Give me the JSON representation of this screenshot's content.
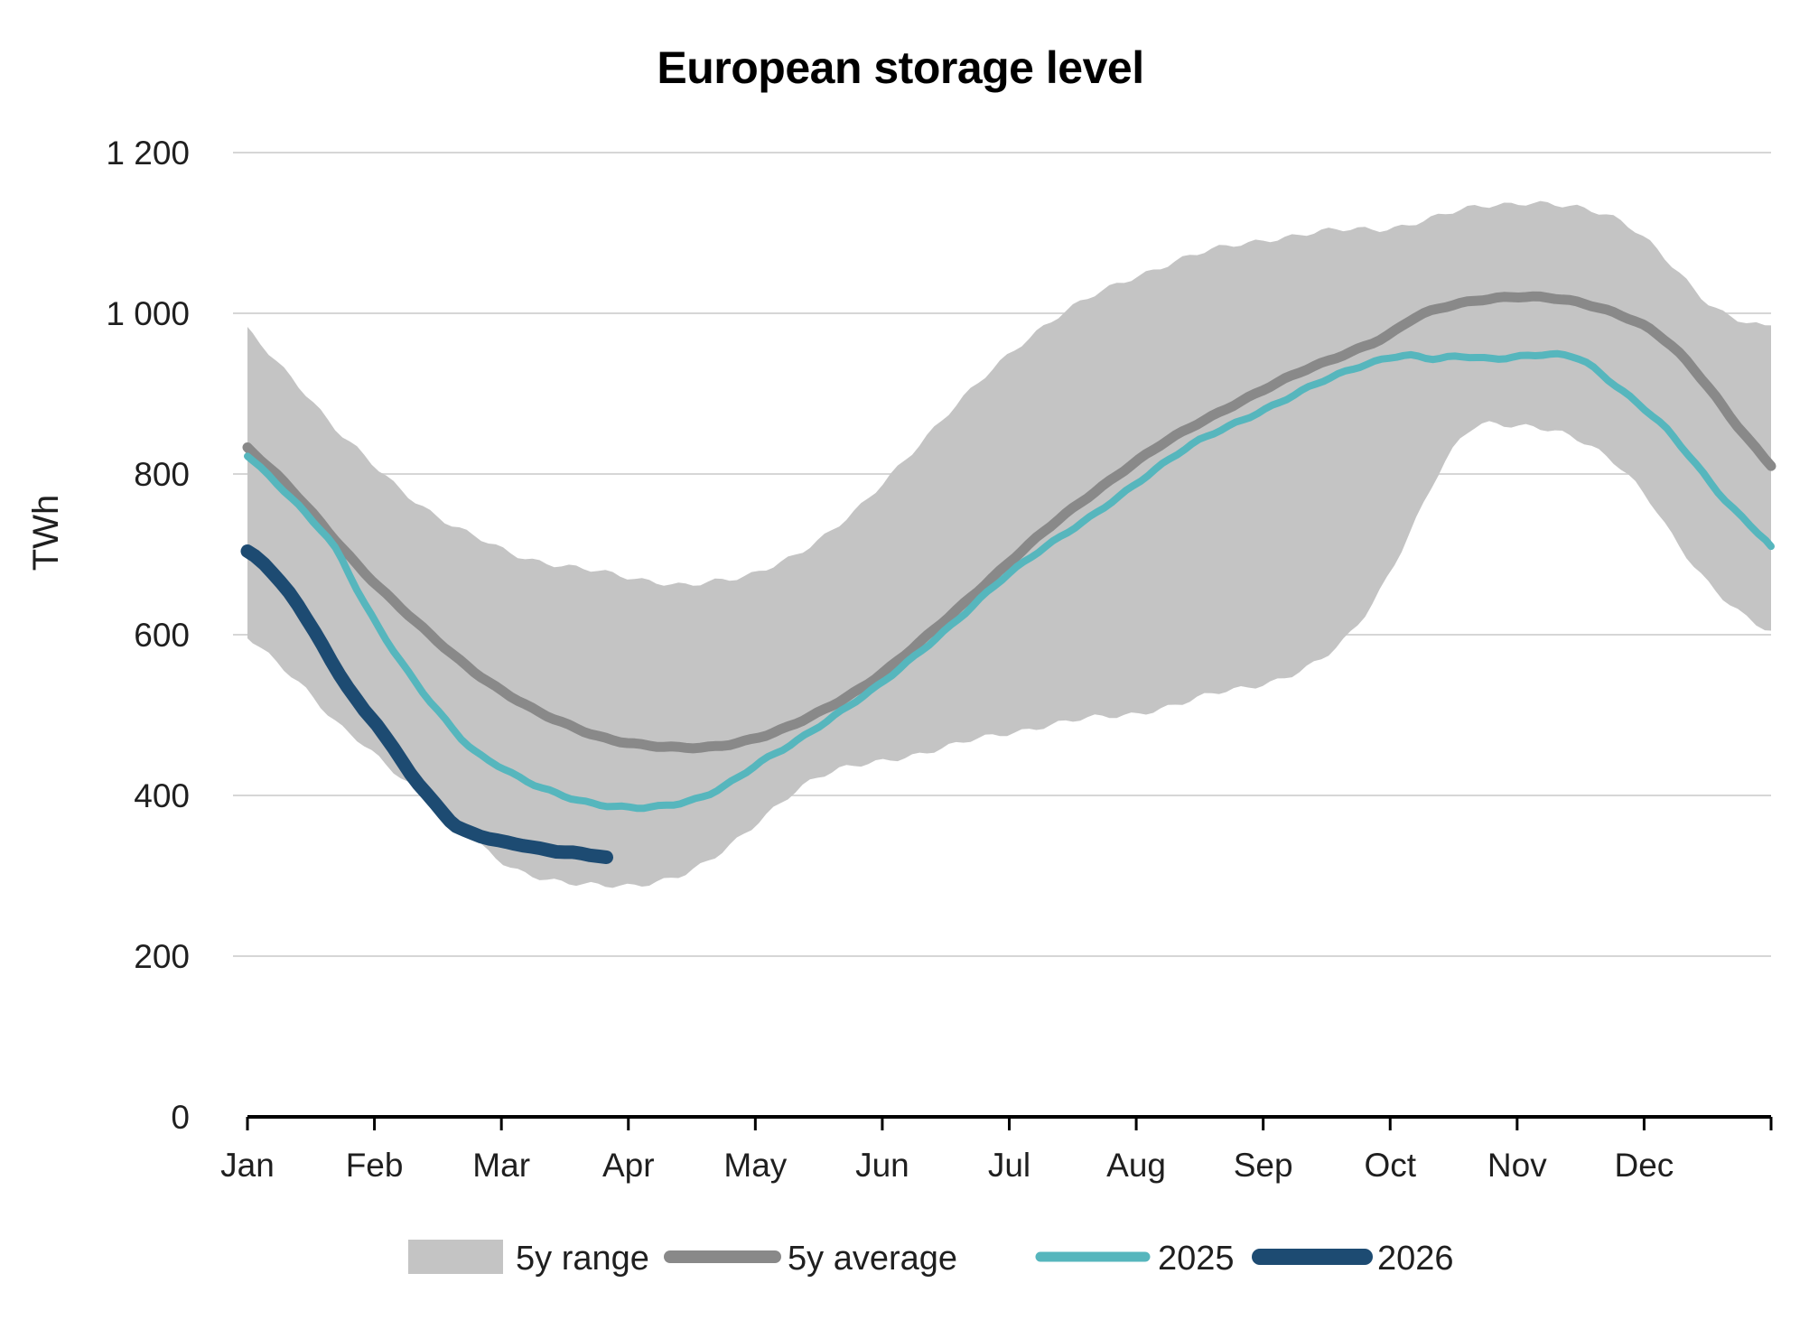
{
  "chart_data": {
    "type": "line",
    "title": "European storage level",
    "ylabel": "TWh",
    "x_axis": {
      "months": [
        "Jan",
        "Feb",
        "Mar",
        "Apr",
        "May",
        "Jun",
        "Jul",
        "Aug",
        "Sep",
        "Oct",
        "Nov",
        "Dec"
      ],
      "range_days": [
        0,
        365
      ]
    },
    "y_axis": {
      "min": 0,
      "max": 1200,
      "step": 200,
      "tick_labels": [
        "0",
        "200",
        "400",
        "600",
        "800",
        "1 000",
        "1 200"
      ]
    },
    "grid": true,
    "legend_position": "bottom",
    "colors": {
      "band": "#c4c4c4",
      "average": "#898989",
      "y2025": "#56b6bd",
      "y2026": "#1d4b72",
      "gridline": "#d6d6d6",
      "axis": "#000000"
    },
    "series": [
      {
        "name": "5y range",
        "type": "band",
        "color": "#c4c4c4",
        "upper": [
          [
            0,
            980
          ],
          [
            7,
            942
          ],
          [
            14,
            900
          ],
          [
            21,
            855
          ],
          [
            28,
            822
          ],
          [
            35,
            790
          ],
          [
            42,
            760
          ],
          [
            49,
            735
          ],
          [
            56,
            718
          ],
          [
            63,
            703
          ],
          [
            70,
            692
          ],
          [
            77,
            684
          ],
          [
            84,
            678
          ],
          [
            91,
            672
          ],
          [
            98,
            667
          ],
          [
            105,
            662
          ],
          [
            112,
            665
          ],
          [
            119,
            672
          ],
          [
            126,
            688
          ],
          [
            133,
            705
          ],
          [
            140,
            728
          ],
          [
            147,
            760
          ],
          [
            154,
            800
          ],
          [
            161,
            838
          ],
          [
            168,
            875
          ],
          [
            175,
            912
          ],
          [
            182,
            948
          ],
          [
            189,
            978
          ],
          [
            196,
            1002
          ],
          [
            203,
            1022
          ],
          [
            210,
            1040
          ],
          [
            217,
            1055
          ],
          [
            224,
            1068
          ],
          [
            231,
            1078
          ],
          [
            238,
            1086
          ],
          [
            245,
            1093
          ],
          [
            252,
            1098
          ],
          [
            259,
            1102
          ],
          [
            266,
            1104
          ],
          [
            273,
            1106
          ],
          [
            280,
            1114
          ],
          [
            287,
            1123
          ],
          [
            294,
            1131
          ],
          [
            301,
            1136
          ],
          [
            308,
            1139
          ],
          [
            315,
            1134
          ],
          [
            322,
            1126
          ],
          [
            329,
            1115
          ],
          [
            336,
            1090
          ],
          [
            343,
            1050
          ],
          [
            350,
            1010
          ],
          [
            357,
            992
          ],
          [
            365,
            985
          ]
        ],
        "lower": [
          [
            0,
            598
          ],
          [
            7,
            568
          ],
          [
            14,
            532
          ],
          [
            21,
            490
          ],
          [
            28,
            462
          ],
          [
            35,
            432
          ],
          [
            42,
            402
          ],
          [
            49,
            372
          ],
          [
            56,
            336
          ],
          [
            63,
            312
          ],
          [
            70,
            299
          ],
          [
            77,
            290
          ],
          [
            84,
            287
          ],
          [
            91,
            288
          ],
          [
            98,
            294
          ],
          [
            105,
            303
          ],
          [
            112,
            322
          ],
          [
            119,
            352
          ],
          [
            126,
            385
          ],
          [
            133,
            412
          ],
          [
            140,
            428
          ],
          [
            147,
            438
          ],
          [
            154,
            446
          ],
          [
            161,
            452
          ],
          [
            168,
            460
          ],
          [
            175,
            470
          ],
          [
            182,
            478
          ],
          [
            189,
            485
          ],
          [
            196,
            491
          ],
          [
            203,
            496
          ],
          [
            210,
            500
          ],
          [
            217,
            507
          ],
          [
            224,
            515
          ],
          [
            231,
            525
          ],
          [
            238,
            533
          ],
          [
            245,
            542
          ],
          [
            252,
            555
          ],
          [
            259,
            575
          ],
          [
            266,
            612
          ],
          [
            273,
            672
          ],
          [
            280,
            745
          ],
          [
            287,
            815
          ],
          [
            294,
            858
          ],
          [
            301,
            862
          ],
          [
            308,
            860
          ],
          [
            315,
            850
          ],
          [
            322,
            832
          ],
          [
            329,
            808
          ],
          [
            336,
            768
          ],
          [
            343,
            710
          ],
          [
            350,
            662
          ],
          [
            357,
            630
          ],
          [
            365,
            605
          ]
        ]
      },
      {
        "name": "5y average",
        "type": "line",
        "color": "#898989",
        "stroke_width": 11,
        "points": [
          [
            0,
            833
          ],
          [
            7,
            799
          ],
          [
            14,
            760
          ],
          [
            21,
            718
          ],
          [
            28,
            678
          ],
          [
            35,
            642
          ],
          [
            42,
            608
          ],
          [
            49,
            576
          ],
          [
            56,
            548
          ],
          [
            63,
            524
          ],
          [
            70,
            503
          ],
          [
            77,
            487
          ],
          [
            84,
            474
          ],
          [
            91,
            466
          ],
          [
            98,
            461
          ],
          [
            105,
            459
          ],
          [
            112,
            461
          ],
          [
            119,
            468
          ],
          [
            126,
            478
          ],
          [
            133,
            493
          ],
          [
            140,
            512
          ],
          [
            147,
            534
          ],
          [
            154,
            560
          ],
          [
            161,
            590
          ],
          [
            168,
            622
          ],
          [
            175,
            655
          ],
          [
            182,
            688
          ],
          [
            189,
            720
          ],
          [
            196,
            750
          ],
          [
            203,
            778
          ],
          [
            210,
            805
          ],
          [
            217,
            830
          ],
          [
            224,
            852
          ],
          [
            231,
            872
          ],
          [
            238,
            891
          ],
          [
            245,
            909
          ],
          [
            252,
            926
          ],
          [
            259,
            941
          ],
          [
            266,
            956
          ],
          [
            273,
            972
          ],
          [
            280,
            995
          ],
          [
            287,
            1008
          ],
          [
            294,
            1016
          ],
          [
            301,
            1020
          ],
          [
            308,
            1020
          ],
          [
            315,
            1017
          ],
          [
            322,
            1010
          ],
          [
            329,
            998
          ],
          [
            336,
            980
          ],
          [
            343,
            950
          ],
          [
            350,
            908
          ],
          [
            357,
            860
          ],
          [
            365,
            810
          ]
        ]
      },
      {
        "name": "2025",
        "type": "line",
        "color": "#56b6bd",
        "stroke_width": 8,
        "points": [
          [
            0,
            824
          ],
          [
            7,
            788
          ],
          [
            14,
            750
          ],
          [
            21,
            708
          ],
          [
            28,
            640
          ],
          [
            35,
            580
          ],
          [
            42,
            528
          ],
          [
            49,
            484
          ],
          [
            53,
            462
          ],
          [
            56,
            450
          ],
          [
            60,
            438
          ],
          [
            67,
            417
          ],
          [
            74,
            402
          ],
          [
            81,
            392
          ],
          [
            88,
            387
          ],
          [
            95,
            385
          ],
          [
            102,
            388
          ],
          [
            109,
            398
          ],
          [
            116,
            418
          ],
          [
            123,
            442
          ],
          [
            130,
            462
          ],
          [
            137,
            486
          ],
          [
            144,
            512
          ],
          [
            151,
            537
          ],
          [
            158,
            565
          ],
          [
            165,
            595
          ],
          [
            172,
            628
          ],
          [
            179,
            662
          ],
          [
            186,
            690
          ],
          [
            193,
            715
          ],
          [
            200,
            740
          ],
          [
            207,
            766
          ],
          [
            214,
            792
          ],
          [
            221,
            818
          ],
          [
            228,
            842
          ],
          [
            235,
            860
          ],
          [
            242,
            876
          ],
          [
            249,
            893
          ],
          [
            256,
            912
          ],
          [
            263,
            928
          ],
          [
            270,
            940
          ],
          [
            277,
            947
          ],
          [
            284,
            943
          ],
          [
            291,
            947
          ],
          [
            298,
            944
          ],
          [
            305,
            946
          ],
          [
            312,
            948
          ],
          [
            319,
            944
          ],
          [
            326,
            918
          ],
          [
            333,
            888
          ],
          [
            340,
            855
          ],
          [
            347,
            812
          ],
          [
            354,
            768
          ],
          [
            360,
            737
          ],
          [
            365,
            710
          ]
        ]
      },
      {
        "name": "2026",
        "type": "line",
        "color": "#1d4b72",
        "stroke_width": 15,
        "points": [
          [
            0,
            703
          ],
          [
            4,
            688
          ],
          [
            8,
            665
          ],
          [
            12,
            638
          ],
          [
            16,
            605
          ],
          [
            20,
            568
          ],
          [
            24,
            535
          ],
          [
            28,
            505
          ],
          [
            31,
            488
          ],
          [
            35,
            458
          ],
          [
            39,
            428
          ],
          [
            43,
            402
          ],
          [
            47,
            378
          ],
          [
            50,
            362
          ],
          [
            54,
            352
          ],
          [
            58,
            346
          ],
          [
            62,
            341
          ],
          [
            66,
            338
          ],
          [
            70,
            334
          ],
          [
            74,
            331
          ],
          [
            78,
            329
          ],
          [
            82,
            326
          ],
          [
            86,
            323
          ]
        ]
      }
    ]
  }
}
